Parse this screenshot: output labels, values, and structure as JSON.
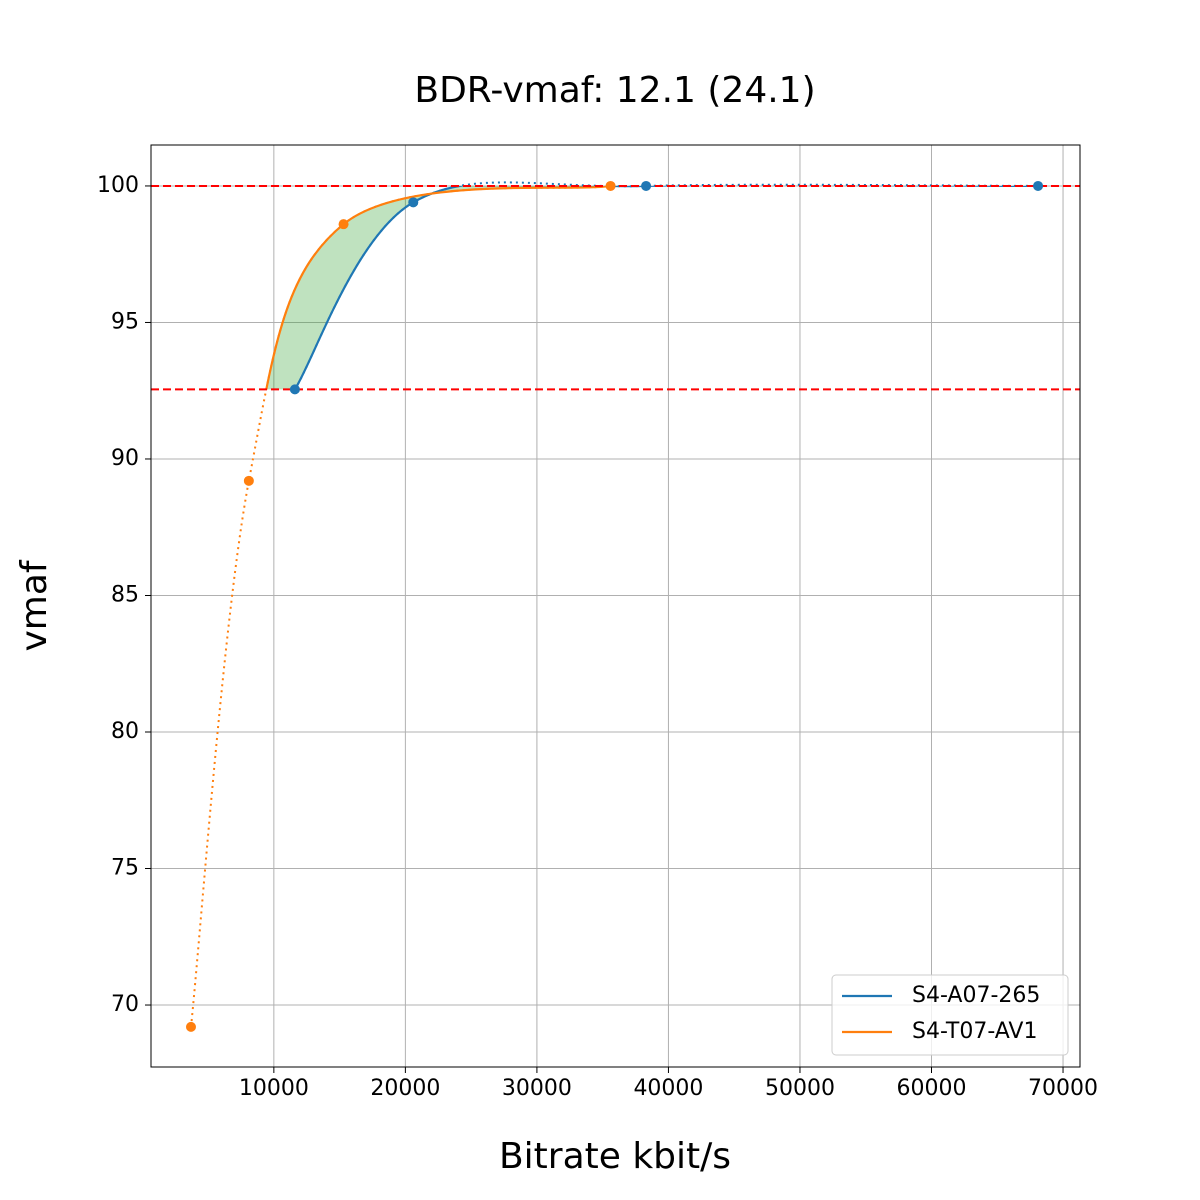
{
  "chart_data": {
    "type": "line",
    "title": "BDR-vmaf: 12.1 (24.1)",
    "x_label": "Bitrate kbit/s",
    "y_label": "vmaf",
    "series": [
      {
        "name": "S4-A07-265",
        "color": "#1f77b4",
        "x": [
          11600,
          20600,
          38300,
          68100
        ],
        "values": [
          92.55,
          99.4,
          100,
          100
        ]
      },
      {
        "name": "S4-T07-AV1",
        "color": "#ff7f0e",
        "x": [
          3700,
          8100,
          15300,
          35600
        ],
        "values": [
          69.2,
          89.2,
          98.6,
          100
        ]
      }
    ],
    "hlines": [
      100,
      92.55
    ],
    "hline_color": "#ff0000",
    "fill_color": "#2ca02c",
    "xlim": [
      660,
      71290
    ],
    "ylim": [
      67.73,
      101.5
    ],
    "xticks": [
      10000,
      20000,
      30000,
      40000,
      50000,
      60000,
      70000
    ],
    "yticks": [
      70,
      75,
      80,
      85,
      90,
      95,
      100
    ],
    "grid": true,
    "legend": "lower right"
  }
}
